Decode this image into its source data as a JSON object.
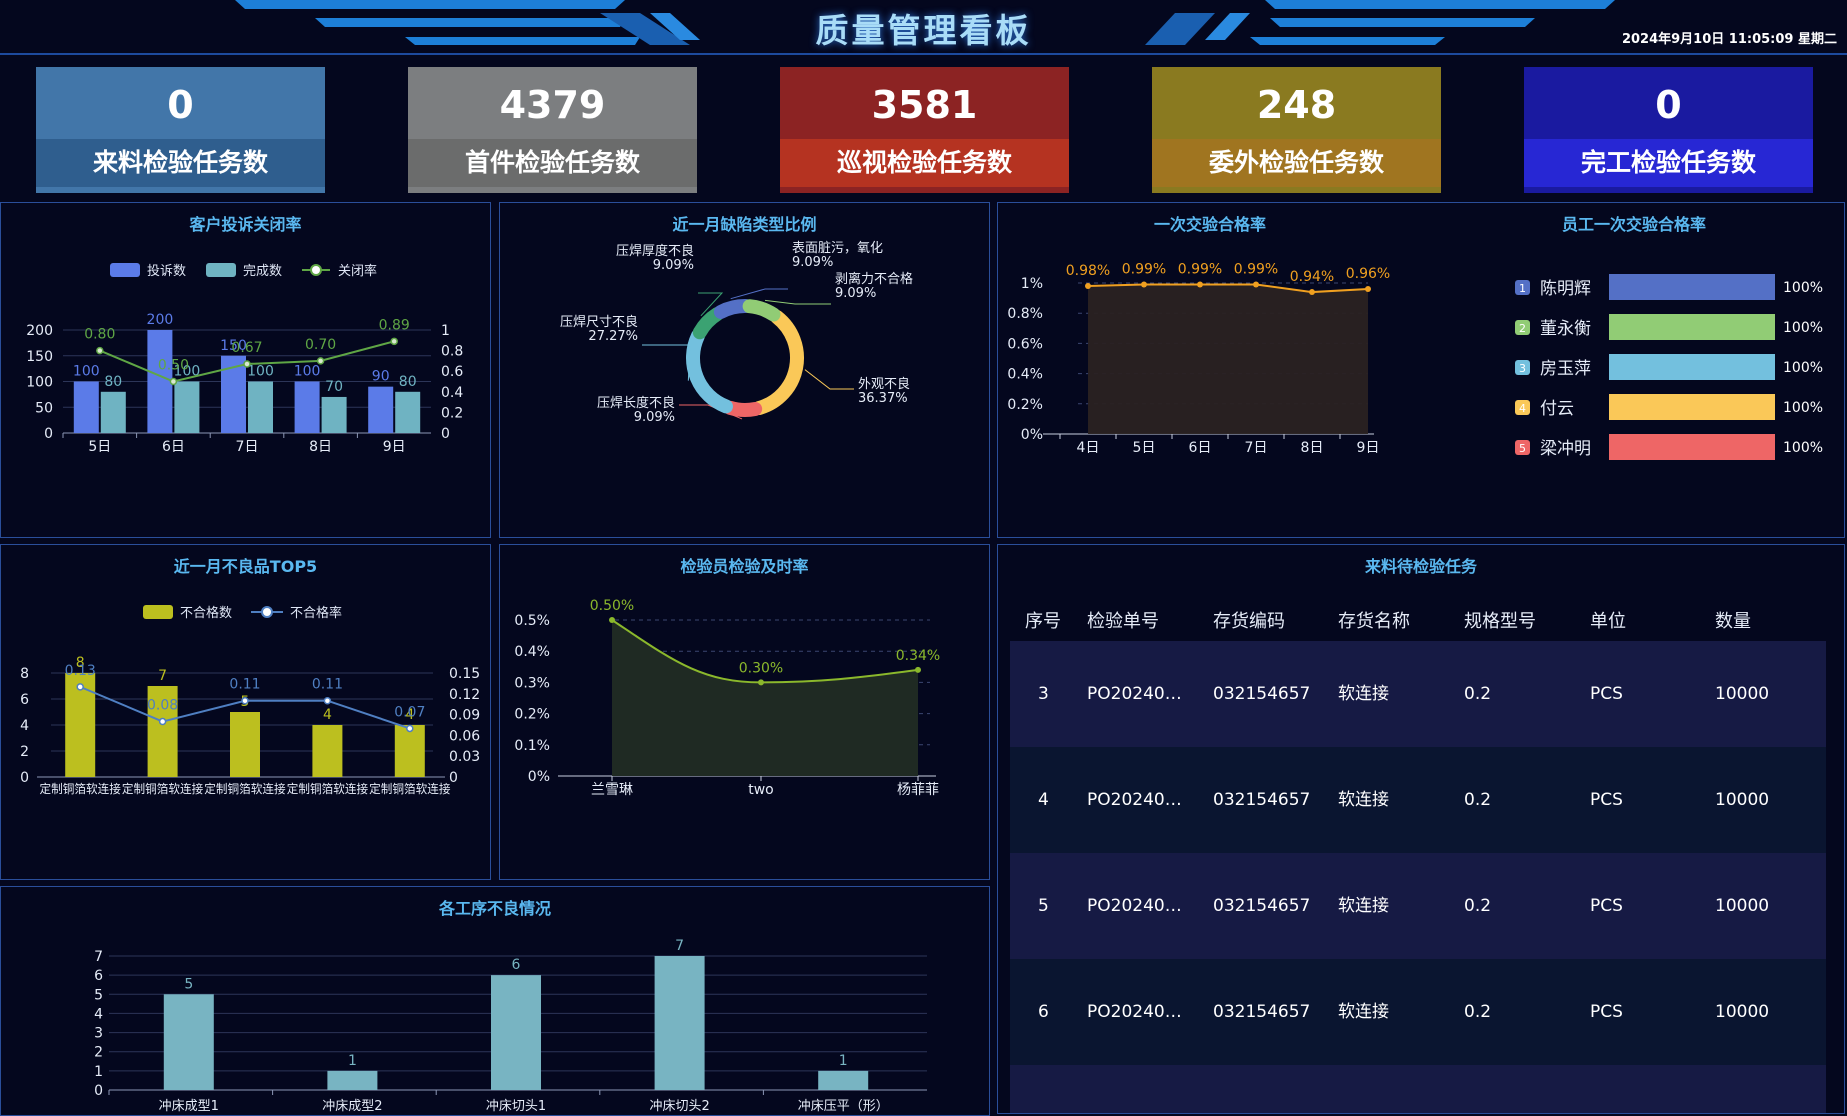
{
  "header": {
    "title": "质量管理看板",
    "datetime": "2024年9月10日 11:05:09 星期二"
  },
  "kpis": [
    {
      "value": "0",
      "label": "来料检验任务数",
      "top": "#4276a9",
      "bottom": "#2f5e8e"
    },
    {
      "value": "4379",
      "label": "首件检验任务数",
      "top": "#7c7e80",
      "bottom": "#6b6c6c"
    },
    {
      "value": "3581",
      "label": "巡视检验任务数",
      "top": "#8c2323",
      "bottom": "#b53321"
    },
    {
      "value": "248",
      "label": "委外检验任务数",
      "top": "#8a7a20",
      "bottom": "#a07520"
    },
    {
      "value": "0",
      "label": "完工检验任务数",
      "top": "#1a1aa0",
      "bottom": "#2727d4"
    }
  ],
  "complaints": {
    "title": "客户投诉关闭率",
    "legend": [
      "投诉数",
      "完成数",
      "关闭率"
    ],
    "chart_data": {
      "type": "bar",
      "categories": [
        "5日",
        "6日",
        "7日",
        "8日",
        "9日"
      ],
      "series": [
        {
          "name": "投诉数",
          "values": [
            100,
            200,
            150,
            100,
            90
          ],
          "color": "#5b7be8"
        },
        {
          "name": "完成数",
          "values": [
            80,
            100,
            100,
            70,
            80
          ],
          "color": "#6fb3c2"
        },
        {
          "name": "关闭率",
          "type": "line",
          "values": [
            0.8,
            0.5,
            0.67,
            0.7,
            0.89
          ],
          "labels": [
            "0.80",
            "0.50",
            "0.67",
            "0.70",
            "0.89"
          ],
          "color": "#5fa645"
        }
      ],
      "yticks_left": [
        "200",
        "150",
        "100",
        "50",
        "0"
      ],
      "yticks_right": [
        "1",
        "0.8",
        "0.6",
        "0.4",
        "0.2",
        "0"
      ],
      "ylim_left": [
        0,
        200
      ],
      "ylim_right": [
        0,
        1
      ]
    }
  },
  "defects": {
    "title": "近一月缺陷类型比例",
    "chart_data": {
      "type": "pie",
      "slices": [
        {
          "name": "外观不良",
          "pct": "36.37%",
          "value": 36.37,
          "color": "#fac858"
        },
        {
          "name": "压焊长度不良",
          "pct": "9.09%",
          "value": 9.09,
          "color": "#ee6666"
        },
        {
          "name": "压焊尺寸不良",
          "pct": "27.27%",
          "value": 27.27,
          "color": "#73c0de"
        },
        {
          "name": "压焊厚度不良",
          "pct": "9.09%",
          "value": 9.09,
          "color": "#3ba272"
        },
        {
          "name": "表面脏污，氧化",
          "pct": "9.09%",
          "value": 9.09,
          "color": "#5470c6"
        },
        {
          "name": "剥离力不合格",
          "pct": "9.09%",
          "value": 9.09,
          "color": "#91cc75"
        }
      ]
    }
  },
  "firstpass": {
    "title": "一次交验合格率",
    "chart_data": {
      "type": "area",
      "categories": [
        "4日",
        "5日",
        "6日",
        "7日",
        "8日",
        "9日"
      ],
      "values": [
        0.98,
        0.99,
        0.99,
        0.99,
        0.94,
        0.96
      ],
      "labels": [
        "0.98%",
        "0.99%",
        "0.99%",
        "0.99%",
        "0.94%",
        "0.96%"
      ],
      "yticks": [
        "1%",
        "0.8%",
        "0.6%",
        "0.4%",
        "0.2%",
        "0%"
      ],
      "ylim": [
        0,
        1
      ]
    }
  },
  "staff": {
    "title": "员工一次交验合格率",
    "chart_data": {
      "type": "bar",
      "rows": [
        {
          "rank": "1",
          "name": "陈明辉",
          "value": 100,
          "label": "100%",
          "color": "#5470c6"
        },
        {
          "rank": "2",
          "name": "董永衡",
          "value": 100,
          "label": "100%",
          "color": "#91cc75"
        },
        {
          "rank": "3",
          "name": "房玉萍",
          "value": 100,
          "label": "100%",
          "color": "#73c0de"
        },
        {
          "rank": "4",
          "name": "付云",
          "value": 100,
          "label": "100%",
          "color": "#fac858"
        },
        {
          "rank": "5",
          "name": "梁冲明",
          "value": 100,
          "label": "100%",
          "color": "#ee6666"
        }
      ]
    }
  },
  "top5": {
    "title": "近一月不良品TOP5",
    "legend": [
      "不合格数",
      "不合格率"
    ],
    "chart_data": {
      "type": "bar",
      "categories": [
        "定制铜箔软连接",
        "定制铜箔软连接",
        "定制铜箔软连接",
        "定制铜箔软连接",
        "定制铜箔软连接"
      ],
      "series": [
        {
          "name": "不合格数",
          "values": [
            8,
            7,
            5,
            4,
            4
          ],
          "color": "#bcbf1f"
        },
        {
          "name": "不合格率",
          "type": "line",
          "values": [
            0.13,
            0.08,
            0.11,
            0.11,
            0.07
          ],
          "labels": [
            "0.13",
            "0.08",
            "0.11",
            "0.11",
            "0.07"
          ],
          "color": "#4f7fc2"
        }
      ],
      "yticks_left": [
        "8",
        "6",
        "4",
        "2",
        "0"
      ],
      "yticks_right": [
        "0.15",
        "0.12",
        "0.09",
        "0.06",
        "0.03",
        "0"
      ],
      "ylim_left": [
        0,
        8
      ],
      "ylim_right": [
        0,
        0.15
      ]
    }
  },
  "timely": {
    "title": "检验员检验及时率",
    "chart_data": {
      "type": "area",
      "categories": [
        "兰雪琳",
        "two",
        "杨菲菲"
      ],
      "values": [
        0.5,
        0.3,
        0.34
      ],
      "labels": [
        "0.50%",
        "0.30%",
        "0.34%"
      ],
      "yticks": [
        "0.5%",
        "0.4%",
        "0.3%",
        "0.2%",
        "0.1%",
        "0%"
      ],
      "ylim": [
        0,
        0.5
      ]
    }
  },
  "process": {
    "title": "各工序不良情况",
    "chart_data": {
      "type": "bar",
      "categories": [
        "冲床成型1",
        "冲床成型2",
        "冲床切头1",
        "冲床切头2",
        "冲床压平（形）"
      ],
      "values": [
        5,
        1,
        6,
        7,
        1
      ],
      "color": "#78b4c2",
      "yticks": [
        "7",
        "6",
        "5",
        "4",
        "3",
        "2",
        "1",
        "0"
      ],
      "ylim": [
        0,
        7
      ]
    }
  },
  "pending": {
    "title": "来料待检验任务",
    "columns": [
      "序号",
      "检验单号",
      "存货编码",
      "存货名称",
      "规格型号",
      "单位",
      "数量"
    ],
    "rows": [
      [
        "3",
        "PO20240…",
        "032154657",
        "软连接",
        "0.2",
        "PCS",
        "10000"
      ],
      [
        "4",
        "PO20240…",
        "032154657",
        "软连接",
        "0.2",
        "PCS",
        "10000"
      ],
      [
        "5",
        "PO20240…",
        "032154657",
        "软连接",
        "0.2",
        "PCS",
        "10000"
      ],
      [
        "6",
        "PO20240…",
        "032154657",
        "软连接",
        "0.2",
        "PCS",
        "10000"
      ]
    ]
  }
}
